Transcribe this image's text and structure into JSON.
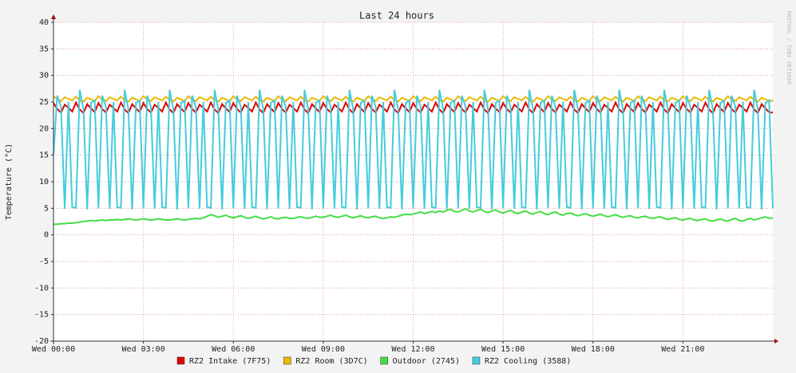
{
  "chart_data": {
    "type": "line",
    "title": "Last 24 hours",
    "y_label": "Temperature (°C)",
    "watermark": "RRDTOOL / TOBI OETIKER",
    "xlim": [
      0,
      24
    ],
    "xticks": [
      {
        "value": 0,
        "label": "Wed 00:00"
      },
      {
        "value": 3,
        "label": "Wed 03:00"
      },
      {
        "value": 6,
        "label": "Wed 06:00"
      },
      {
        "value": 9,
        "label": "Wed 09:00"
      },
      {
        "value": 12,
        "label": "Wed 12:00"
      },
      {
        "value": 15,
        "label": "Wed 15:00"
      },
      {
        "value": 18,
        "label": "Wed 18:00"
      },
      {
        "value": 21,
        "label": "Wed 21:00"
      }
    ],
    "ylim": [
      -20,
      40
    ],
    "yticks": [
      -20,
      -15,
      -10,
      -5,
      0,
      5,
      10,
      15,
      20,
      25,
      30,
      35,
      40
    ],
    "grid": true,
    "x": [
      0,
      0.125,
      0.25,
      0.375,
      0.5,
      0.625,
      0.75,
      0.875,
      1,
      1.125,
      1.25,
      1.375,
      1.5,
      1.625,
      1.75,
      1.875,
      2,
      2.125,
      2.25,
      2.375,
      2.5,
      2.625,
      2.75,
      2.875,
      3,
      3.125,
      3.25,
      3.375,
      3.5,
      3.625,
      3.75,
      3.875,
      4,
      4.125,
      4.25,
      4.375,
      4.5,
      4.625,
      4.75,
      4.875,
      5,
      5.125,
      5.25,
      5.375,
      5.5,
      5.625,
      5.75,
      5.875,
      6,
      6.125,
      6.25,
      6.375,
      6.5,
      6.625,
      6.75,
      6.875,
      7,
      7.125,
      7.25,
      7.375,
      7.5,
      7.625,
      7.75,
      7.875,
      8,
      8.125,
      8.25,
      8.375,
      8.5,
      8.625,
      8.75,
      8.875,
      9,
      9.125,
      9.25,
      9.375,
      9.5,
      9.625,
      9.75,
      9.875,
      10,
      10.125,
      10.25,
      10.375,
      10.5,
      10.625,
      10.75,
      10.875,
      11,
      11.125,
      11.25,
      11.375,
      11.5,
      11.625,
      11.75,
      11.875,
      12,
      12.125,
      12.25,
      12.375,
      12.5,
      12.625,
      12.75,
      12.875,
      13,
      13.125,
      13.25,
      13.375,
      13.5,
      13.625,
      13.75,
      13.875,
      14,
      14.125,
      14.25,
      14.375,
      14.5,
      14.625,
      14.75,
      14.875,
      15,
      15.125,
      15.25,
      15.375,
      15.5,
      15.625,
      15.75,
      15.875,
      16,
      16.125,
      16.25,
      16.375,
      16.5,
      16.625,
      16.75,
      16.875,
      17,
      17.125,
      17.25,
      17.375,
      17.5,
      17.625,
      17.75,
      17.875,
      18,
      18.125,
      18.25,
      18.375,
      18.5,
      18.625,
      18.75,
      18.875,
      19,
      19.125,
      19.25,
      19.375,
      19.5,
      19.625,
      19.75,
      19.875,
      20,
      20.125,
      20.25,
      20.375,
      20.5,
      20.625,
      20.75,
      20.875,
      21,
      21.125,
      21.25,
      21.375,
      21.5,
      21.625,
      21.75,
      21.875,
      22,
      22.125,
      22.25,
      22.375,
      22.5,
      22.625,
      22.75,
      22.875,
      23,
      23.125,
      23.25,
      23.375,
      23.5,
      23.625,
      23.75,
      23.875,
      24
    ],
    "series": [
      {
        "name": "RZ2 Intake (7F75)",
        "color": "#e00000",
        "values": [
          24.8,
          23.7,
          23.0,
          24.5,
          23.9,
          23.2,
          24.9,
          23.6,
          22.9,
          24.6,
          23.8,
          23.1,
          24.8,
          23.7,
          23.0,
          24.5,
          23.9,
          23.2,
          24.9,
          23.6,
          22.9,
          24.6,
          23.8,
          23.1,
          24.8,
          23.7,
          23.0,
          24.5,
          23.9,
          23.2,
          24.9,
          23.6,
          22.9,
          24.6,
          23.8,
          23.1,
          24.8,
          23.7,
          23.0,
          24.5,
          23.9,
          23.2,
          24.9,
          23.6,
          22.9,
          24.6,
          23.8,
          23.1,
          24.8,
          23.7,
          23.0,
          24.5,
          23.9,
          23.2,
          24.9,
          23.6,
          22.9,
          24.6,
          23.8,
          23.1,
          24.8,
          23.7,
          23.0,
          24.5,
          23.9,
          23.2,
          24.9,
          23.6,
          22.9,
          24.6,
          23.8,
          23.1,
          24.8,
          23.7,
          23.0,
          24.5,
          23.9,
          23.2,
          24.9,
          23.6,
          22.9,
          24.6,
          23.8,
          23.1,
          24.8,
          23.7,
          23.0,
          24.5,
          23.9,
          23.2,
          24.9,
          23.6,
          22.9,
          24.6,
          23.8,
          23.1,
          24.8,
          23.7,
          23.0,
          24.5,
          23.9,
          23.2,
          24.9,
          23.6,
          22.9,
          24.6,
          23.8,
          23.1,
          24.8,
          23.7,
          23.0,
          24.5,
          23.9,
          23.2,
          24.9,
          23.6,
          22.9,
          24.6,
          23.8,
          23.1,
          24.8,
          23.7,
          23.0,
          24.5,
          23.9,
          23.2,
          24.9,
          23.6,
          22.9,
          24.6,
          23.8,
          23.1,
          24.8,
          23.7,
          23.0,
          24.5,
          23.9,
          23.2,
          24.9,
          23.6,
          22.9,
          24.6,
          23.8,
          23.1,
          24.8,
          23.7,
          23.0,
          24.5,
          23.9,
          23.2,
          24.9,
          23.6,
          22.9,
          24.6,
          23.8,
          23.1,
          24.8,
          23.7,
          23.0,
          24.5,
          23.9,
          23.2,
          24.9,
          23.6,
          22.9,
          24.6,
          23.8,
          23.1,
          24.8,
          23.7,
          23.0,
          24.5,
          23.9,
          23.2,
          24.9,
          23.6,
          22.9,
          24.6,
          23.8,
          23.1,
          24.8,
          23.7,
          23.0,
          24.5,
          23.9,
          23.2,
          24.9,
          23.6,
          22.9,
          24.6,
          23.8,
          23.1,
          23.0
        ]
      },
      {
        "name": "RZ2 Room (3D7C)",
        "color": "#e8b800",
        "values": [
          26.1,
          25.5,
          25.2,
          25.9,
          25.6,
          25.3,
          26.0,
          25.4,
          25.1,
          25.8,
          25.5,
          25.2,
          26.1,
          25.5,
          25.2,
          25.9,
          25.6,
          25.3,
          26.0,
          25.4,
          25.1,
          25.8,
          25.5,
          25.2,
          26.1,
          25.5,
          25.2,
          25.9,
          25.6,
          25.3,
          26.0,
          25.4,
          25.1,
          25.8,
          25.5,
          25.2,
          26.1,
          25.5,
          25.2,
          25.9,
          25.6,
          25.3,
          26.0,
          25.4,
          25.1,
          25.8,
          25.5,
          25.2,
          26.1,
          25.5,
          25.2,
          25.9,
          25.6,
          25.3,
          26.0,
          25.4,
          25.1,
          25.8,
          25.5,
          25.2,
          26.1,
          25.5,
          25.2,
          25.9,
          25.6,
          25.3,
          26.0,
          25.4,
          25.1,
          25.8,
          25.5,
          25.2,
          26.1,
          25.5,
          25.2,
          25.9,
          25.6,
          25.3,
          26.0,
          25.4,
          25.1,
          25.8,
          25.5,
          25.2,
          26.1,
          25.5,
          25.2,
          25.9,
          25.6,
          25.3,
          26.0,
          25.4,
          25.1,
          25.8,
          25.5,
          25.2,
          26.1,
          25.5,
          25.2,
          25.9,
          25.6,
          25.3,
          26.0,
          25.4,
          25.1,
          25.8,
          25.5,
          25.2,
          26.1,
          25.5,
          25.2,
          25.9,
          25.6,
          25.3,
          26.0,
          25.4,
          25.1,
          25.8,
          25.5,
          25.2,
          26.1,
          25.5,
          25.2,
          25.9,
          25.6,
          25.3,
          26.0,
          25.4,
          25.1,
          25.8,
          25.5,
          25.2,
          26.1,
          25.5,
          25.2,
          25.9,
          25.6,
          25.3,
          26.0,
          25.4,
          25.1,
          25.8,
          25.5,
          25.2,
          26.1,
          25.5,
          25.2,
          25.9,
          25.6,
          25.3,
          26.0,
          25.4,
          25.1,
          25.8,
          25.5,
          25.2,
          26.1,
          25.5,
          25.2,
          25.9,
          25.6,
          25.3,
          26.0,
          25.4,
          25.1,
          25.8,
          25.5,
          25.2,
          26.1,
          25.5,
          25.2,
          25.9,
          25.6,
          25.3,
          26.0,
          25.4,
          25.1,
          25.8,
          25.5,
          25.2,
          26.1,
          25.5,
          25.2,
          25.9,
          25.6,
          25.3,
          26.0,
          25.4,
          25.1,
          25.8,
          25.5,
          25.2,
          25.3
        ]
      },
      {
        "name": "Outdoor (2745)",
        "color": "#44dd44",
        "values": [
          2.0,
          2.0,
          2.1,
          2.1,
          2.2,
          2.2,
          2.3,
          2.4,
          2.5,
          2.6,
          2.7,
          2.6,
          2.7,
          2.8,
          2.7,
          2.8,
          2.8,
          2.9,
          2.8,
          2.9,
          3.0,
          2.9,
          2.8,
          2.9,
          3.0,
          2.9,
          2.8,
          2.9,
          3.0,
          2.9,
          2.8,
          2.8,
          2.9,
          3.0,
          2.9,
          2.8,
          2.9,
          3.0,
          3.1,
          3.0,
          3.2,
          3.5,
          3.8,
          3.6,
          3.3,
          3.5,
          3.7,
          3.4,
          3.2,
          3.4,
          3.6,
          3.3,
          3.1,
          3.3,
          3.5,
          3.2,
          3.0,
          3.2,
          3.4,
          3.1,
          3.0,
          3.2,
          3.3,
          3.1,
          3.1,
          3.3,
          3.4,
          3.2,
          3.1,
          3.3,
          3.5,
          3.3,
          3.3,
          3.5,
          3.7,
          3.4,
          3.3,
          3.5,
          3.7,
          3.4,
          3.2,
          3.4,
          3.6,
          3.3,
          3.2,
          3.4,
          3.5,
          3.2,
          3.1,
          3.2,
          3.4,
          3.3,
          3.5,
          3.7,
          3.9,
          3.8,
          3.9,
          4.1,
          4.3,
          4.0,
          4.2,
          4.4,
          4.2,
          4.5,
          4.3,
          4.6,
          4.8,
          4.4,
          4.3,
          4.6,
          4.9,
          4.5,
          4.3,
          4.6,
          4.8,
          4.4,
          4.2,
          4.5,
          4.7,
          4.3,
          4.1,
          4.4,
          4.6,
          4.2,
          4.0,
          4.3,
          4.5,
          4.1,
          3.9,
          4.2,
          4.4,
          4.0,
          3.8,
          4.1,
          4.3,
          3.9,
          3.7,
          4.0,
          4.1,
          3.8,
          3.6,
          3.8,
          4.0,
          3.7,
          3.5,
          3.7,
          3.9,
          3.6,
          3.4,
          3.6,
          3.8,
          3.5,
          3.3,
          3.5,
          3.6,
          3.3,
          3.2,
          3.4,
          3.5,
          3.2,
          3.1,
          3.3,
          3.4,
          3.1,
          2.9,
          3.1,
          3.2,
          2.9,
          2.8,
          3.0,
          3.1,
          2.8,
          2.7,
          2.9,
          3.0,
          2.7,
          2.6,
          2.8,
          3.0,
          2.7,
          2.6,
          2.9,
          3.1,
          2.7,
          2.6,
          2.9,
          3.1,
          2.8,
          3.0,
          3.2,
          3.4,
          3.1,
          3.2
        ]
      },
      {
        "name": "RZ2 Cooling (3588)",
        "color": "#44ccdd",
        "values": [
          15.0,
          26.2,
          24.1,
          4.9,
          25.0,
          5.2,
          5.1,
          27.3,
          23.6,
          4.8,
          24.8,
          25.3,
          5.0,
          26.2,
          24.1,
          4.9,
          25.0,
          5.2,
          5.1,
          27.3,
          23.6,
          4.8,
          24.8,
          25.3,
          5.0,
          26.2,
          24.1,
          4.9,
          25.0,
          5.2,
          5.1,
          27.3,
          23.6,
          4.8,
          24.8,
          25.3,
          5.0,
          26.2,
          24.1,
          4.9,
          25.0,
          5.2,
          5.1,
          27.3,
          23.6,
          4.8,
          24.8,
          25.3,
          5.0,
          26.2,
          24.1,
          4.9,
          25.0,
          5.2,
          5.1,
          27.3,
          23.6,
          4.8,
          24.8,
          25.3,
          5.0,
          26.2,
          24.1,
          4.9,
          25.0,
          5.2,
          5.1,
          27.3,
          23.6,
          4.8,
          24.8,
          25.3,
          5.0,
          26.2,
          24.1,
          4.9,
          25.0,
          5.2,
          5.1,
          27.3,
          23.6,
          4.8,
          24.8,
          25.3,
          5.0,
          26.2,
          24.1,
          4.9,
          25.0,
          5.2,
          5.1,
          27.3,
          23.6,
          4.8,
          24.8,
          25.3,
          5.0,
          26.2,
          24.1,
          4.9,
          25.0,
          5.2,
          5.1,
          27.3,
          23.6,
          4.8,
          24.8,
          25.3,
          5.0,
          26.2,
          24.1,
          4.9,
          25.0,
          5.2,
          5.1,
          27.3,
          23.6,
          4.8,
          24.8,
          25.3,
          5.0,
          26.2,
          24.1,
          4.9,
          25.0,
          5.2,
          5.1,
          27.3,
          23.6,
          4.8,
          24.8,
          25.3,
          5.0,
          26.2,
          24.1,
          4.9,
          25.0,
          5.2,
          5.1,
          27.3,
          23.6,
          4.8,
          24.8,
          25.3,
          5.0,
          26.2,
          24.1,
          4.9,
          25.0,
          5.2,
          5.1,
          27.3,
          23.6,
          4.8,
          24.8,
          25.3,
          5.0,
          26.2,
          24.1,
          4.9,
          25.0,
          5.2,
          5.1,
          27.3,
          23.6,
          4.8,
          24.8,
          25.3,
          5.0,
          26.2,
          24.1,
          4.9,
          25.0,
          5.2,
          5.1,
          27.3,
          23.6,
          4.8,
          24.8,
          25.3,
          5.0,
          26.2,
          24.1,
          4.9,
          25.0,
          5.2,
          5.1,
          27.3,
          23.6,
          4.8,
          24.8,
          25.3,
          5.0
        ]
      }
    ]
  }
}
